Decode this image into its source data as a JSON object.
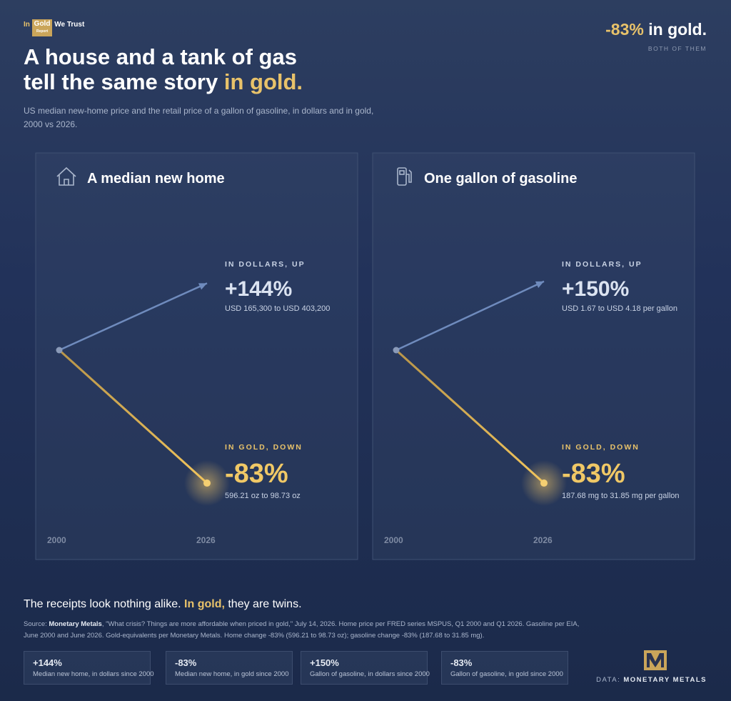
{
  "header": {
    "logo": {
      "pre": "In",
      "mark": "Gold",
      "sub": "Report",
      "post": "We Trust"
    },
    "title_line1": "A house and a tank of gas",
    "title_line2": "tell the same story",
    "title_highlight": "in gold.",
    "subtitle": "US median new-home price and the retail price of a gallon of gasoline, in dollars and in gold, 2000 vs 2026.",
    "badge": {
      "value": "-83%",
      "text": "in gold.",
      "note": "BOTH OF THEM"
    }
  },
  "chart_data": [
    {
      "type": "slope",
      "title": "A median new home",
      "categories": [
        "2000",
        "2026"
      ],
      "log_scale": true,
      "series": [
        {
          "name": "IN DOLLARS, UP",
          "color": "#6f8bbd",
          "change": 144,
          "change_label": "+144%",
          "detail": "USD 165,300 to USD 403,200"
        },
        {
          "name": "IN GOLD, DOWN",
          "color": "#e8b84e",
          "change": -83,
          "change_label": "-83%",
          "detail": "596.21 oz to 98.73 oz"
        }
      ]
    },
    {
      "type": "slope",
      "title": "One gallon of gasoline",
      "categories": [
        "2000",
        "2026"
      ],
      "log_scale": true,
      "series": [
        {
          "name": "IN DOLLARS, UP",
          "color": "#6f8bbd",
          "change": 150,
          "change_label": "+150%",
          "detail": "USD 1.67 to USD 4.18 per gallon"
        },
        {
          "name": "IN GOLD, DOWN",
          "color": "#e8b84e",
          "change": -83,
          "change_label": "-83%",
          "detail": "187.68 mg to 31.85 mg per gallon"
        }
      ]
    }
  ],
  "tagline": {
    "start": "The receipts look nothing alike.",
    "highlight": "In gold,",
    "end": "they are twins."
  },
  "source": {
    "label": "Source:",
    "name": "Monetary Metals",
    "text": ", \"What crisis? Things are more affordable when priced in gold,\" July 14, 2026. Home price per FRED series MSPUS, Q1 2000 and Q1 2026. Gasoline per EIA, June 2000 and June 2026. Gold-equivalents per Monetary Metals. Home change -83% (596.21 to 98.73 oz); gasoline change -83% (187.68 to 31.85 mg)."
  },
  "stats": [
    {
      "value": "+144%",
      "label": "Median new home, in dollars since 2000"
    },
    {
      "value": "-83%",
      "label": "Median new home, in gold since 2000"
    },
    {
      "value": "+150%",
      "label": "Gallon of gasoline, in dollars since 2000"
    },
    {
      "value": "-83%",
      "label": "Gallon of gasoline, in gold since 2000"
    }
  ],
  "credit": {
    "label": "DATA:",
    "name": "MONETARY METALS"
  }
}
